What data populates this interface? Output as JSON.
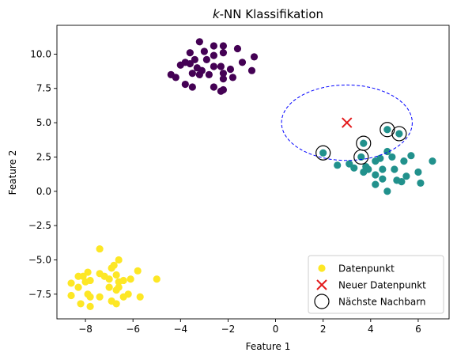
{
  "chart_data": {
    "type": "scatter",
    "title_prefix": "k",
    "title_rest": "-NN Klassifikation",
    "xlabel": "Feature 1",
    "ylabel": "Feature 2",
    "xlim": [
      -9.2,
      7.3
    ],
    "ylim": [
      -9.3,
      12.1
    ],
    "xticks": [
      -8,
      -6,
      -4,
      -2,
      0,
      2,
      4,
      6
    ],
    "xtick_labels": [
      "−8",
      "−6",
      "−4",
      "−2",
      "0",
      "2",
      "4",
      "6"
    ],
    "yticks": [
      -7.5,
      -5.0,
      -2.5,
      0.0,
      2.5,
      5.0,
      7.5,
      10.0
    ],
    "ytick_labels": [
      "−7.5",
      "−5.0",
      "−2.5",
      "0.0",
      "2.5",
      "5.0",
      "7.5",
      "10.0"
    ],
    "grid": false,
    "legend_position": "bottom-right",
    "legend": [
      {
        "label": "Datenpunkt",
        "marker": "dot",
        "color": "#fde725"
      },
      {
        "label": "Neuer Datenpunkt",
        "marker": "x",
        "color": "#e31a1c"
      },
      {
        "label": "Nächste Nachbarn",
        "marker": "ring",
        "color": "#000000"
      }
    ],
    "colors": {
      "purple": "#440154",
      "teal": "#21918c",
      "yellow": "#fde725",
      "new_point": "#e31a1c",
      "ellipse": "#0000ff"
    },
    "series": [
      {
        "color_key": "purple",
        "points": [
          [
            -3.2,
            10.9
          ],
          [
            -2.6,
            10.6
          ],
          [
            -2.2,
            10.6
          ],
          [
            -3.6,
            10.1
          ],
          [
            -3.0,
            10.2
          ],
          [
            -1.6,
            10.4
          ],
          [
            -2.2,
            10.1
          ],
          [
            -2.6,
            9.9
          ],
          [
            -3.8,
            9.4
          ],
          [
            -3.4,
            9.6
          ],
          [
            -2.9,
            9.6
          ],
          [
            -1.4,
            9.4
          ],
          [
            -0.9,
            9.8
          ],
          [
            -4.0,
            9.2
          ],
          [
            -3.6,
            9.3
          ],
          [
            -3.3,
            9.0
          ],
          [
            -2.6,
            9.1
          ],
          [
            -2.3,
            9.1
          ],
          [
            -3.1,
            8.8
          ],
          [
            -3.5,
            8.6
          ],
          [
            -1.9,
            8.9
          ],
          [
            -1.0,
            8.8
          ],
          [
            -4.4,
            8.5
          ],
          [
            -4.2,
            8.3
          ],
          [
            -3.2,
            8.5
          ],
          [
            -2.8,
            8.5
          ],
          [
            -2.2,
            8.6
          ],
          [
            -1.8,
            8.3
          ],
          [
            -2.2,
            8.2
          ],
          [
            -3.8,
            7.8
          ],
          [
            -3.5,
            7.6
          ],
          [
            -2.6,
            7.6
          ],
          [
            -2.3,
            7.3
          ],
          [
            -2.2,
            7.4
          ]
        ]
      },
      {
        "color_key": "teal",
        "points": [
          [
            2.0,
            2.8
          ],
          [
            2.6,
            1.9
          ],
          [
            3.1,
            2.0
          ],
          [
            3.3,
            1.7
          ],
          [
            3.6,
            2.5
          ],
          [
            3.7,
            3.5
          ],
          [
            3.8,
            1.8
          ],
          [
            3.7,
            1.4
          ],
          [
            3.9,
            1.6
          ],
          [
            4.2,
            2.2
          ],
          [
            4.4,
            2.4
          ],
          [
            4.5,
            1.6
          ],
          [
            4.2,
            1.2
          ],
          [
            4.5,
            0.9
          ],
          [
            4.2,
            0.5
          ],
          [
            4.7,
            0.0
          ],
          [
            4.7,
            2.9
          ],
          [
            4.7,
            4.5
          ],
          [
            5.2,
            4.2
          ],
          [
            5.0,
            1.6
          ],
          [
            5.1,
            0.8
          ],
          [
            5.4,
            2.2
          ],
          [
            5.7,
            2.6
          ],
          [
            5.5,
            1.1
          ],
          [
            5.3,
            0.7
          ],
          [
            6.0,
            1.4
          ],
          [
            6.1,
            0.6
          ],
          [
            6.6,
            2.2
          ],
          [
            4.9,
            2.5
          ]
        ]
      },
      {
        "color_key": "yellow",
        "points": [
          [
            -7.4,
            -4.2
          ],
          [
            -6.6,
            -5.0
          ],
          [
            -6.8,
            -5.4
          ],
          [
            -7.9,
            -5.9
          ],
          [
            -8.1,
            -6.2
          ],
          [
            -8.0,
            -6.6
          ],
          [
            -7.8,
            -6.5
          ],
          [
            -7.4,
            -6.0
          ],
          [
            -7.2,
            -6.2
          ],
          [
            -6.9,
            -5.6
          ],
          [
            -6.7,
            -6.1
          ],
          [
            -7.0,
            -6.4
          ],
          [
            -6.6,
            -6.6
          ],
          [
            -6.4,
            -6.5
          ],
          [
            -6.1,
            -6.4
          ],
          [
            -5.8,
            -5.8
          ],
          [
            -5.0,
            -6.4
          ],
          [
            -8.3,
            -6.2
          ],
          [
            -8.6,
            -6.7
          ],
          [
            -8.3,
            -7.0
          ],
          [
            -7.9,
            -7.5
          ],
          [
            -7.8,
            -7.7
          ],
          [
            -7.4,
            -7.7
          ],
          [
            -7.0,
            -7.0
          ],
          [
            -6.7,
            -7.2
          ],
          [
            -6.6,
            -7.0
          ],
          [
            -6.4,
            -7.7
          ],
          [
            -6.2,
            -7.5
          ],
          [
            -5.7,
            -7.7
          ],
          [
            -6.9,
            -8.0
          ],
          [
            -6.7,
            -8.2
          ],
          [
            -7.8,
            -8.4
          ],
          [
            -8.2,
            -8.2
          ],
          [
            -8.6,
            -7.6
          ]
        ]
      }
    ],
    "new_point": [
      3.0,
      5.0
    ],
    "neighbors": [
      [
        2.0,
        2.8
      ],
      [
        3.6,
        2.5
      ],
      [
        3.7,
        3.5
      ],
      [
        4.7,
        4.5
      ],
      [
        5.2,
        4.2
      ]
    ],
    "ellipse": {
      "center": [
        3.0,
        5.0
      ],
      "rx": 2.75,
      "ry": 2.75
    }
  }
}
